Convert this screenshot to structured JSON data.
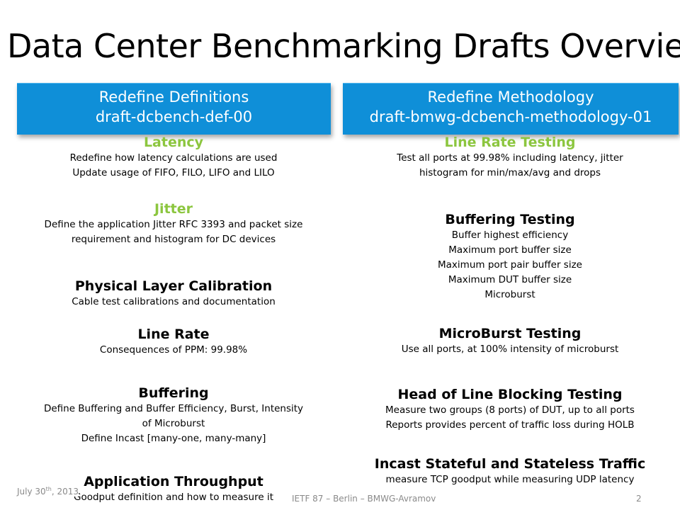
{
  "title": "Data Center Benchmarking Drafts Overview",
  "banners": {
    "left": {
      "line1": "Redefine Definitions",
      "line2": "draft-dcbench-def-00"
    },
    "right": {
      "line1": "Redefine Methodology",
      "line2": "draft-bmwg-dcbench-methodology-01"
    }
  },
  "left_sections": [
    {
      "heading": "Latency",
      "lines": [
        "Redefine how latency calculations are used",
        "Update usage of FIFO, FILO, LIFO and LILO"
      ]
    },
    {
      "heading": "Jitter",
      "lines": [
        "Define the application Jitter RFC 3393 and packet size",
        "requirement and histogram for DC devices"
      ]
    },
    {
      "heading": "Physical Layer Calibration",
      "lines": [
        "Cable test calibrations and documentation"
      ]
    },
    {
      "heading": "Line Rate",
      "lines": [
        "Consequences of PPM: 99.98%"
      ]
    },
    {
      "heading": "Buffering",
      "lines": [
        "Define Buffering and Buffer Efficiency, Burst, Intensity",
        "of Microburst",
        "Define Incast [many-one, many-many]"
      ]
    },
    {
      "heading": "Application Throughput",
      "lines": [
        "Goodput definition and how to measure it"
      ]
    }
  ],
  "right_sections": [
    {
      "heading": "Line Rate Testing",
      "lines": [
        "Test all ports at 99.98% including latency, jitter",
        "histogram for min/max/avg and drops"
      ]
    },
    {
      "heading": "Buffering Testing",
      "lines": [
        "Buffer highest efficiency",
        "Maximum port buffer size",
        "Maximum port pair buffer size",
        "Maximum DUT buffer size",
        "Microburst"
      ]
    },
    {
      "heading": "MicroBurst Testing",
      "lines": [
        "Use all ports, at 100% intensity of microburst"
      ]
    },
    {
      "heading": "Head of Line Blocking Testing",
      "lines": [
        "Measure two groups (8 ports) of DUT, up to all ports",
        "Reports provides percent of traffic loss during HOLB"
      ]
    },
    {
      "heading": "Incast Stateful and Stateless Traffic",
      "lines": [
        "measure TCP goodput while measuring UDP latency"
      ]
    }
  ],
  "footer": {
    "date_main": "July 30",
    "date_sup": "th",
    "date_year": ", 2013",
    "center": "IETF 87 – Berlin – BMWG-Avramov",
    "page": "2"
  },
  "colors": {
    "banner": "#0f8fd8",
    "accent_heading": "#8cc63f",
    "footer": "#8a8a8a"
  }
}
